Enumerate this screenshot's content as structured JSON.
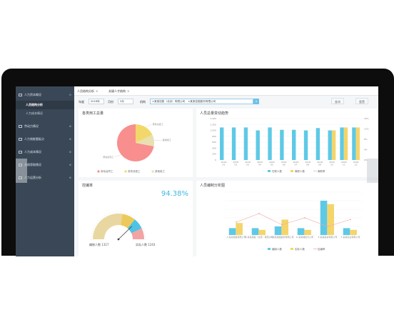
{
  "sidebar": {
    "items": [
      {
        "label": "人力资本概况"
      },
      {
        "label": "劳动力情况"
      },
      {
        "label": "人力效能看板分"
      },
      {
        "label": "人力成本情况"
      },
      {
        "label": "业绩获取情况"
      },
      {
        "label": "人力运营分析"
      }
    ],
    "subitems": [
      {
        "label": "人员结构分析"
      },
      {
        "label": "人力成本情况"
      }
    ]
  },
  "tabs": [
    {
      "label": "人员结构分析"
    },
    {
      "label": "关键人才结构"
    }
  ],
  "filters": {
    "year_label": "年度",
    "year_value": "2018年",
    "month_label": "月份",
    "month_value": "3月",
    "org_label": "机构",
    "org_chips": [
      "×某某控股（北京）有限公司",
      "×某某控股股份有限公司"
    ],
    "btn_query": "查询",
    "btn_reset": "重置"
  },
  "pie_panel": {
    "title": "各类用工总量",
    "chart_data": {
      "type": "pie",
      "slices": [
        {
          "name": "劳动合同工",
          "value": 72,
          "color": "#f88e8e"
        },
        {
          "name": "劳务派遣工",
          "value": 18,
          "color": "#f2d86a"
        },
        {
          "name": "其他用工",
          "value": 10,
          "color": "#e8e0b0"
        }
      ],
      "legend": [
        "劳动合同工",
        "劳务派遣工",
        "其他用工"
      ]
    }
  },
  "trend_panel": {
    "title": "人员总量变动趋势",
    "chart_data": {
      "type": "bar",
      "categories": [
        "2018-01",
        "2018-02",
        "2018-03",
        "2018-04",
        "2018-05",
        "2018-06",
        "2018-07",
        "2018-08",
        "2018-09",
        "2018-10",
        "2018-11",
        "2018-12"
      ],
      "series": [
        {
          "name": "在职人数",
          "values": [
            1100,
            1100,
            1100,
            1000,
            1100,
            1020,
            1020,
            1000,
            1080,
            1000,
            1100,
            1100
          ],
          "color": "#5ec9e6"
        },
        {
          "name": "离职人数",
          "values": [
            0,
            0,
            0,
            0,
            0,
            0,
            0,
            0,
            0,
            1000,
            1100,
            1100
          ],
          "color": "#f4d56b"
        }
      ],
      "ylim": [
        0,
        1400
      ],
      "y2ticks": [
        "0%",
        "4%",
        "8%",
        "12%",
        "16%"
      ],
      "yticks": [
        "0",
        "200",
        "400",
        "600",
        "800",
        "1,000",
        "1,200",
        "1,400"
      ],
      "legend": [
        "在职人数",
        "离职人数",
        "离职率"
      ]
    }
  },
  "gauge_panel": {
    "title": "控编率",
    "percent_text": "94.38%",
    "percent": 94.38,
    "left_label": "编制人数 1317",
    "right_label": "实际人数 1243"
  },
  "budget_panel": {
    "title": "人员编制分析图",
    "chart_data": {
      "type": "bar",
      "categories": [
        "A 某某控股有限公司",
        "B 某某控股（北京）有限公司",
        "C 某某控股股份有限公司",
        "D 某某城投分公司",
        "E 某某投资有限公司",
        "F 某某实业有限公司"
      ],
      "series": [
        {
          "name": "编制人数",
          "values": [
            8,
            8,
            10,
            8,
            40,
            8
          ],
          "color": "#5ec9e6"
        },
        {
          "name": "实际人数",
          "values": [
            14,
            6,
            18,
            6,
            36,
            6
          ],
          "color": "#f4d56b"
        },
        {
          "name": "控编率",
          "values": [
            15,
            25,
            12,
            20,
            10,
            18
          ],
          "color": "#f0a8a8"
        }
      ],
      "ylim": [
        0,
        50
      ],
      "legend": [
        "编制人数",
        "实际人数",
        "控编率"
      ]
    }
  }
}
